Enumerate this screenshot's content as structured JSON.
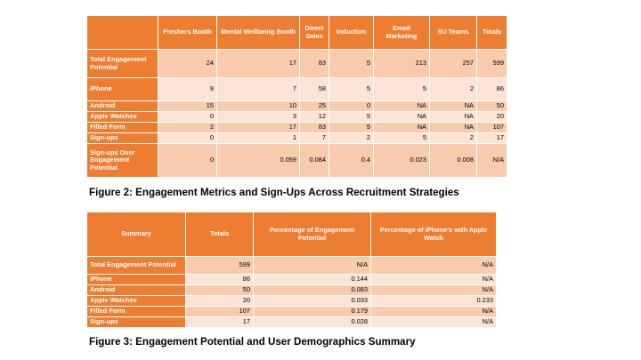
{
  "table1": {
    "headers": [
      "",
      "Freshers Booth",
      "Mental Wellbeing Booth",
      "Direct Sales",
      "Induction",
      "Email Marketing",
      "SU Teams",
      "Totals"
    ],
    "rows": [
      {
        "label": "Total Engagement Potential",
        "values": [
          "24",
          "17",
          "83",
          "5",
          "213",
          "257",
          "599"
        ]
      },
      {
        "label": "iPhone",
        "values": [
          "9",
          "7",
          "58",
          "5",
          "5",
          "2",
          "86"
        ]
      },
      {
        "label": "Android",
        "values": [
          "15",
          "10",
          "25",
          "0",
          "NA",
          "NA",
          "50"
        ]
      },
      {
        "label": "Apple Watches",
        "values": [
          "0",
          "3",
          "12",
          "5",
          "NA",
          "NA",
          "20"
        ]
      },
      {
        "label": "Filled Form",
        "values": [
          "2",
          "17",
          "83",
          "5",
          "NA",
          "NA",
          "107"
        ]
      },
      {
        "label": "Sign-ups",
        "values": [
          "0",
          "1",
          "7",
          "2",
          "5",
          "2",
          "17"
        ]
      },
      {
        "label": "Sign-ups Over Engagement Potential",
        "values": [
          "0",
          "0.059",
          "0.084",
          "0.4",
          "0.023",
          "0.008",
          "N/A"
        ]
      }
    ]
  },
  "caption1": "Figure 2: Engagement Metrics and Sign-Ups Across Recruitment Strategies",
  "table2": {
    "headers": [
      "Summary",
      "Totals",
      "Percentage of Engagement Potential",
      "Percentage of iPhone's with Apple Watch"
    ],
    "rows": [
      {
        "label": "Total Engagement Potential",
        "values": [
          "599",
          "N/A",
          "N/A"
        ]
      },
      {
        "label": "iPhone",
        "values": [
          "86",
          "0.144",
          "N/A"
        ]
      },
      {
        "label": "Android",
        "values": [
          "50",
          "0.083",
          "N/A"
        ]
      },
      {
        "label": "Apple Watches",
        "values": [
          "20",
          "0.033",
          "0.233"
        ]
      },
      {
        "label": "Filled Form",
        "values": [
          "107",
          "0.179",
          "N/A"
        ]
      },
      {
        "label": "Sign-ups",
        "values": [
          "17",
          "0.028",
          "N/A"
        ]
      }
    ]
  },
  "caption2": "Figure 3: Engagement Potential and User Demographics Summary"
}
